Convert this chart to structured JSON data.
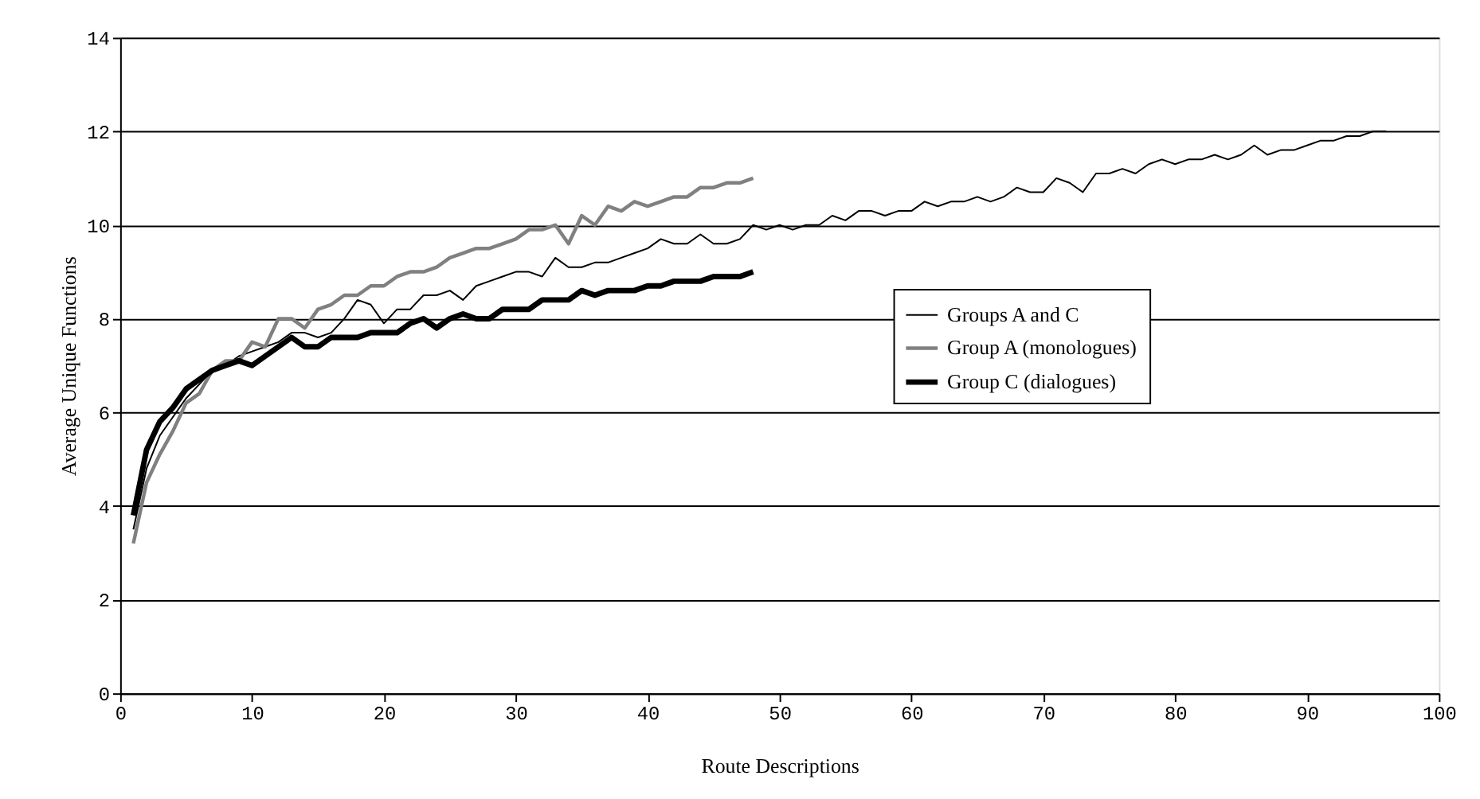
{
  "chart_data": {
    "type": "line",
    "xlabel": "Route Descriptions",
    "ylabel": "Average Unique Functions",
    "x": [
      1,
      2,
      3,
      4,
      5,
      6,
      7,
      8,
      9,
      10,
      11,
      12,
      13,
      14,
      15,
      16,
      17,
      18,
      19,
      20,
      21,
      22,
      23,
      24,
      25,
      26,
      27,
      28,
      29,
      30,
      31,
      32,
      33,
      34,
      35,
      36,
      37,
      38,
      39,
      40,
      41,
      42,
      43,
      44,
      45,
      46,
      47,
      48,
      49,
      50,
      51,
      52,
      53,
      54,
      55,
      56,
      57,
      58,
      59,
      60,
      61,
      62,
      63,
      64,
      65,
      66,
      67,
      68,
      69,
      70,
      71,
      72,
      73,
      74,
      75,
      76,
      77,
      78,
      79,
      80,
      81,
      82,
      83,
      84,
      85,
      86,
      87,
      88,
      89,
      90,
      91,
      92,
      93,
      94,
      95,
      96
    ],
    "series": [
      {
        "name": "Groups A and C",
        "color": "#000000",
        "values": [
          3.5,
          4.8,
          5.5,
          5.9,
          6.3,
          6.6,
          6.9,
          7.0,
          7.2,
          7.3,
          7.4,
          7.5,
          7.7,
          7.7,
          7.6,
          7.7,
          8.0,
          8.4,
          8.3,
          7.9,
          8.2,
          8.2,
          8.5,
          8.5,
          8.6,
          8.4,
          8.7,
          8.8,
          8.9,
          9.0,
          9.0,
          8.9,
          9.3,
          9.1,
          9.1,
          9.2,
          9.2,
          9.3,
          9.4,
          9.5,
          9.7,
          9.6,
          9.6,
          9.8,
          9.6,
          9.6,
          9.7,
          10.0,
          9.9,
          10.0,
          9.9,
          10.0,
          10.0,
          10.2,
          10.1,
          10.3,
          10.3,
          10.2,
          10.3,
          10.3,
          10.5,
          10.4,
          10.5,
          10.5,
          10.6,
          10.5,
          10.6,
          10.8,
          10.7,
          10.7,
          11.0,
          10.9,
          10.7,
          11.1,
          11.1,
          11.2,
          11.1,
          11.3,
          11.4,
          11.3,
          11.4,
          11.4,
          11.5,
          11.4,
          11.5,
          11.7,
          11.5,
          11.6,
          11.6,
          11.7,
          11.8,
          11.8,
          11.9,
          11.9,
          12.0,
          12.0
        ]
      },
      {
        "name": "Group A (monologues)",
        "color": "#808080",
        "x": [
          1,
          2,
          3,
          4,
          5,
          6,
          7,
          8,
          9,
          10,
          11,
          12,
          13,
          14,
          15,
          16,
          17,
          18,
          19,
          20,
          21,
          22,
          23,
          24,
          25,
          26,
          27,
          28,
          29,
          30,
          31,
          32,
          33,
          34,
          35,
          36,
          37,
          38,
          39,
          40,
          41,
          42,
          43,
          44,
          45,
          46,
          47,
          48
        ],
        "values": [
          3.2,
          4.5,
          5.1,
          5.6,
          6.2,
          6.4,
          6.9,
          7.1,
          7.1,
          7.5,
          7.4,
          8.0,
          8.0,
          7.8,
          8.2,
          8.3,
          8.5,
          8.5,
          8.7,
          8.7,
          8.9,
          9.0,
          9.0,
          9.1,
          9.3,
          9.4,
          9.5,
          9.5,
          9.6,
          9.7,
          9.9,
          9.9,
          10.0,
          9.6,
          10.2,
          10.0,
          10.4,
          10.3,
          10.5,
          10.4,
          10.5,
          10.6,
          10.6,
          10.8,
          10.8,
          10.9,
          10.9,
          11.0
        ]
      },
      {
        "name": "Group C (dialogues)",
        "color": "#000000",
        "x": [
          1,
          2,
          3,
          4,
          5,
          6,
          7,
          8,
          9,
          10,
          11,
          12,
          13,
          14,
          15,
          16,
          17,
          18,
          19,
          20,
          21,
          22,
          23,
          24,
          25,
          26,
          27,
          28,
          29,
          30,
          31,
          32,
          33,
          34,
          35,
          36,
          37,
          38,
          39,
          40,
          41,
          42,
          43,
          44,
          45,
          46,
          47,
          48
        ],
        "values": [
          3.8,
          5.2,
          5.8,
          6.1,
          6.5,
          6.7,
          6.9,
          7.0,
          7.1,
          7.0,
          7.2,
          7.4,
          7.6,
          7.4,
          7.4,
          7.6,
          7.6,
          7.6,
          7.7,
          7.7,
          7.7,
          7.9,
          8.0,
          7.8,
          8.0,
          8.1,
          8.0,
          8.0,
          8.2,
          8.2,
          8.2,
          8.4,
          8.4,
          8.4,
          8.6,
          8.5,
          8.6,
          8.6,
          8.6,
          8.7,
          8.7,
          8.8,
          8.8,
          8.8,
          8.9,
          8.9,
          8.9,
          9.0
        ]
      }
    ],
    "xlim": [
      0,
      100
    ],
    "xticks": [
      0,
      10,
      20,
      30,
      40,
      50,
      60,
      70,
      80,
      90,
      100
    ],
    "ylim": [
      0,
      14
    ],
    "yticks": [
      0,
      2,
      4,
      6,
      8,
      10,
      12,
      14
    ],
    "grid": "y",
    "legend": "right",
    "marker": "none",
    "line_style": "solid"
  }
}
